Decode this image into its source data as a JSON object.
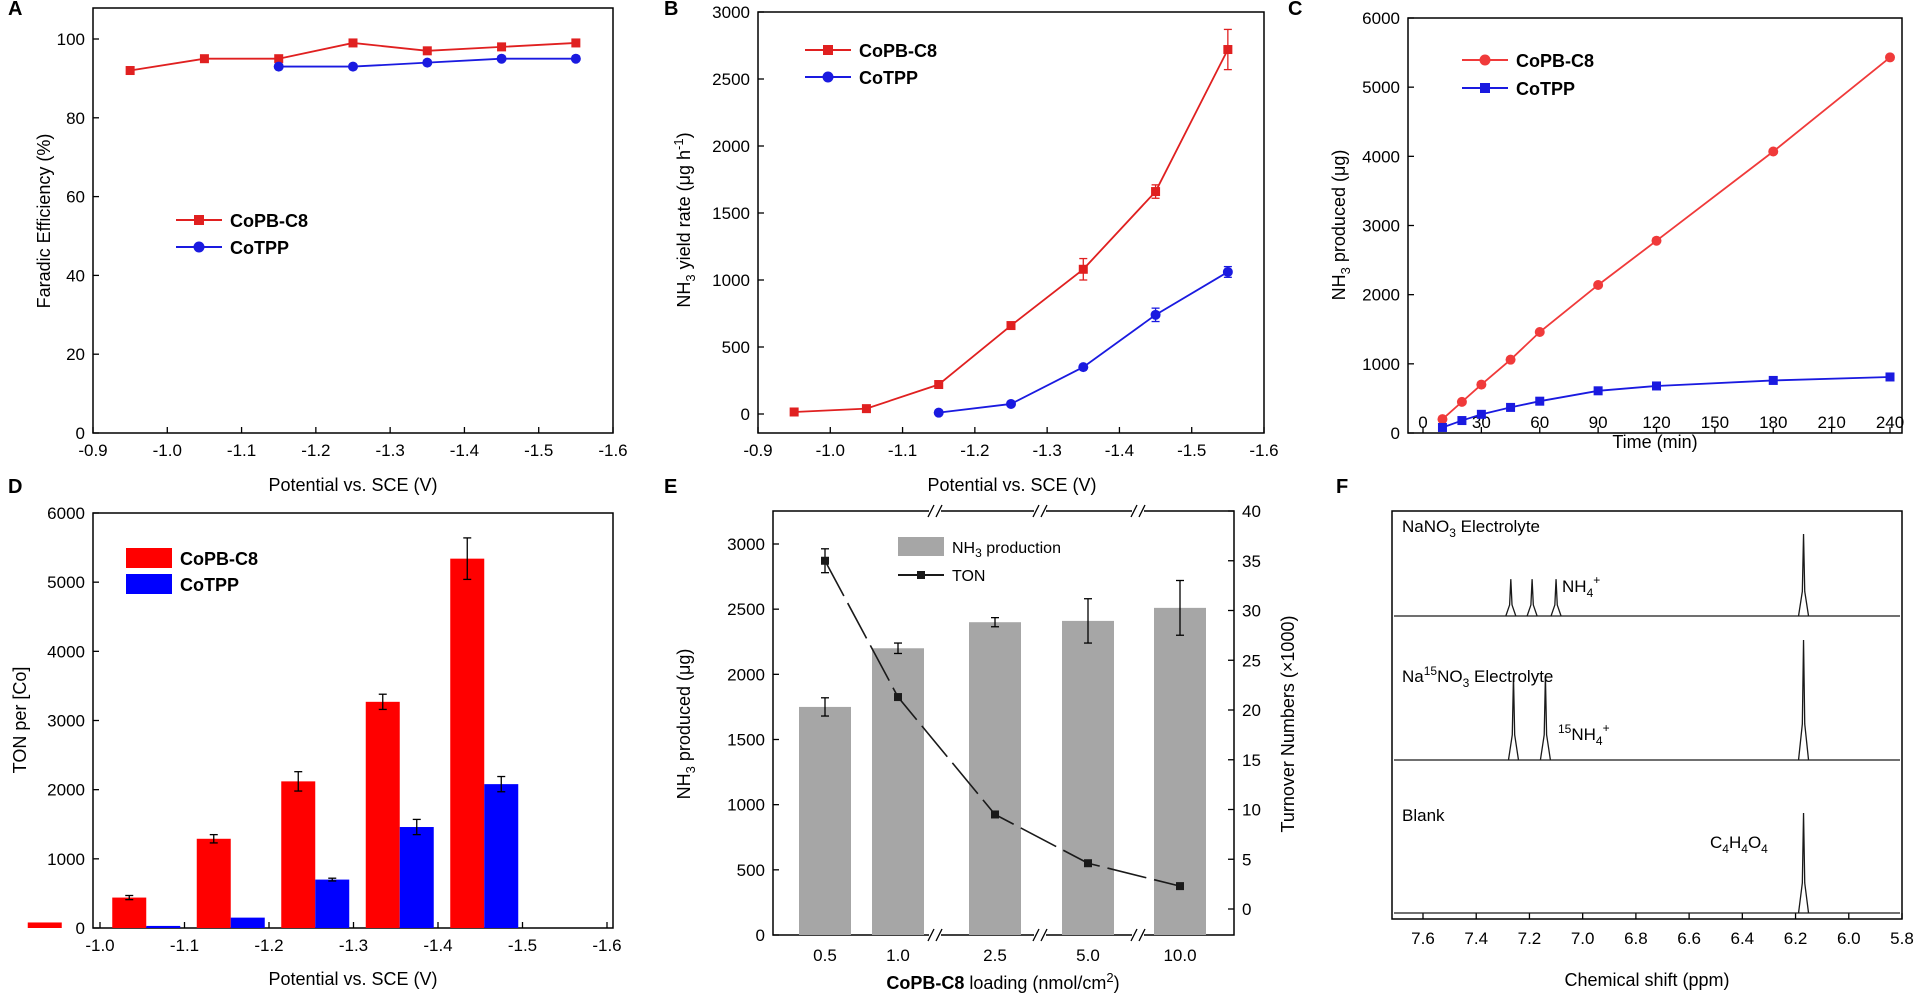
{
  "figure": {
    "panel_letters": [
      "A",
      "B",
      "C",
      "D",
      "E",
      "F"
    ]
  },
  "chart_data": [
    {
      "panel": "A",
      "type": "line",
      "xlabel": "Potential vs. SCE (V)",
      "ylabel": "Faradic Efficiency (%)",
      "xlim": [
        -0.9,
        -1.6
      ],
      "ylim": [
        0,
        105
      ],
      "xticks": [
        "-0.9",
        "-1.0",
        "-1.1",
        "-1.2",
        "-1.3",
        "-1.4",
        "-1.5",
        "-1.6"
      ],
      "yticks": [
        "0",
        "20",
        "40",
        "60",
        "80",
        "100"
      ],
      "legend": [
        "CoPB-C8",
        "CoTPP"
      ],
      "series": [
        {
          "name": "CoPB-C8",
          "color": "#e02020",
          "marker": "square",
          "x": [
            -0.95,
            -1.05,
            -1.15,
            -1.25,
            -1.35,
            -1.45,
            -1.55
          ],
          "y": [
            92,
            95,
            95,
            99,
            97,
            98,
            99
          ]
        },
        {
          "name": "CoTPP",
          "color": "#1a1ae0",
          "marker": "circle",
          "x": [
            -1.15,
            -1.25,
            -1.35,
            -1.45,
            -1.55
          ],
          "y": [
            93,
            93,
            94,
            95,
            95
          ]
        }
      ]
    },
    {
      "panel": "B",
      "type": "line",
      "xlabel": "Potential vs. SCE (V)",
      "ylabel_main": "NH",
      "ylabel_sub": "3",
      "ylabel_rest": " yield rate (μg h",
      "ylabel_sup": "-1",
      "ylabel_end": ")",
      "xlim": [
        -0.9,
        -1.6
      ],
      "ylim": [
        -80,
        3000
      ],
      "xticks": [
        "-0.9",
        "-1.0",
        "-1.1",
        "-1.2",
        "-1.3",
        "-1.4",
        "-1.5",
        "-1.6"
      ],
      "yticks": [
        "0",
        "500",
        "1000",
        "1500",
        "2000",
        "2500",
        "3000"
      ],
      "legend": [
        "CoPB-C8",
        "CoTPP"
      ],
      "series": [
        {
          "name": "CoPB-C8",
          "color": "#e02020",
          "marker": "square",
          "x": [
            -0.95,
            -1.05,
            -1.15,
            -1.25,
            -1.35,
            -1.45,
            -1.55
          ],
          "y": [
            15,
            40,
            220,
            660,
            1080,
            1660,
            2720
          ],
          "err": [
            0,
            0,
            0,
            0,
            80,
            50,
            150
          ]
        },
        {
          "name": "CoTPP",
          "color": "#1a1ae0",
          "marker": "circle",
          "x": [
            -1.15,
            -1.25,
            -1.35,
            -1.45,
            -1.55
          ],
          "y": [
            10,
            75,
            350,
            740,
            1060
          ],
          "err": [
            0,
            0,
            0,
            50,
            40
          ]
        }
      ]
    },
    {
      "panel": "C",
      "type": "line",
      "xlabel": "Time (min)",
      "ylabel_main": "NH",
      "ylabel_sub": "3",
      "ylabel_rest": " produced (μg)",
      "xlim": [
        0,
        250
      ],
      "ylim": [
        0,
        6000
      ],
      "xticks": [
        "0",
        "30",
        "60",
        "90",
        "120",
        "150",
        "180",
        "210",
        "240"
      ],
      "yticks": [
        "0",
        "1000",
        "2000",
        "3000",
        "4000",
        "5000",
        "6000"
      ],
      "legend": [
        "CoPB-C8",
        "CoTPP"
      ],
      "series": [
        {
          "name": "CoPB-C8",
          "color": "#f03a3a",
          "marker": "circle",
          "x": [
            10,
            20,
            30,
            45,
            60,
            90,
            120,
            180,
            240
          ],
          "y": [
            200,
            450,
            700,
            1060,
            1460,
            2140,
            2780,
            4070,
            5430
          ]
        },
        {
          "name": "CoTPP",
          "color": "#1a1ae0",
          "marker": "square",
          "x": [
            10,
            20,
            30,
            45,
            60,
            90,
            120,
            180,
            240
          ],
          "y": [
            80,
            180,
            270,
            370,
            460,
            610,
            680,
            760,
            810
          ]
        }
      ]
    },
    {
      "panel": "D",
      "type": "bar",
      "xlabel": "Potential vs. SCE (V)",
      "ylabel": "TON per [Co]",
      "xlim": [
        -1.0,
        -1.6
      ],
      "ylim": [
        0,
        6000
      ],
      "xticks": [
        "-1.0",
        "-1.1",
        "-1.2",
        "-1.3",
        "-1.4",
        "-1.5",
        "-1.6"
      ],
      "yticks": [
        "0",
        "1000",
        "2000",
        "3000",
        "4000",
        "5000",
        "6000"
      ],
      "legend": [
        "CoPB-C8",
        "CoTPP"
      ],
      "categories": [
        -0.95,
        -1.05,
        -1.15,
        -1.25,
        -1.35,
        -1.45,
        -1.55
      ],
      "series": [
        {
          "name": "CoPB-C8",
          "color": "#ff0000",
          "values": [
            80,
            440,
            1290,
            2120,
            3270,
            5340,
            null
          ],
          "err": [
            0,
            30,
            60,
            140,
            110,
            300,
            0
          ]
        },
        {
          "name": "CoTPP",
          "color": "#0000ff",
          "values": [
            null,
            30,
            150,
            700,
            1460,
            2080,
            null
          ],
          "err": [
            0,
            0,
            0,
            20,
            110,
            110,
            0
          ]
        }
      ]
    },
    {
      "panel": "E",
      "type": "bar",
      "xlabel_bold": "CoPB-C8",
      "xlabel_rest": " loading (nmol/cm",
      "xlabel_sup": "2",
      "xlabel_end": ")",
      "ylabel_main": "NH",
      "ylabel_sub": "3",
      "ylabel_rest": " produced (μg)",
      "y2label": "Turnover Numbers (×1000)",
      "ylim": [
        0,
        3250
      ],
      "y2lim": [
        -2,
        40
      ],
      "categories": [
        "0.5",
        "1.0",
        "2.5",
        "5.0",
        "10.0"
      ],
      "yticks": [
        "0",
        "500",
        "1000",
        "1500",
        "2000",
        "2500",
        "3000"
      ],
      "y2ticks": [
        "0",
        "5",
        "10",
        "15",
        "20",
        "25",
        "30",
        "35",
        "40"
      ],
      "legend_bar_main": "NH",
      "legend_bar_sub": "3",
      "legend_bar_rest": " production",
      "legend_line": "TON",
      "series": [
        {
          "name": "NH3 production",
          "color": "#a6a6a6",
          "values": [
            1750,
            2200,
            2400,
            2410,
            2510
          ],
          "err": [
            70,
            40,
            35,
            170,
            210
          ]
        },
        {
          "name": "TON",
          "color": "#1a1a1a",
          "axis": "right",
          "values": [
            35,
            21.3,
            9.5,
            4.6,
            2.3
          ],
          "err": [
            1.2,
            0,
            0,
            0,
            0
          ]
        }
      ]
    },
    {
      "panel": "F",
      "type": "line",
      "xlabel": "Chemical shift (ppm)",
      "xlim": [
        7.75,
        5.8
      ],
      "xticks": [
        "7.6",
        "7.4",
        "7.2",
        "7.0",
        "6.8",
        "6.6",
        "6.4",
        "6.2",
        "6.0",
        "5.8"
      ],
      "traces": [
        {
          "label_main": "NaNO",
          "label_sub": "3",
          "label_rest": " Electrolyte",
          "annotation_main": "NH",
          "annotation_sub": "4",
          "annotation_sup": "+",
          "peaks_ppm": [
            7.27,
            7.19,
            7.1,
            6.17
          ],
          "peak_heights": [
            0.45,
            0.45,
            0.45,
            1.0
          ]
        },
        {
          "label_main": "Na",
          "label_sup": "15",
          "label_rest": "NO",
          "label_sub": "3",
          "label_end": " Electrolyte",
          "annotation_pre": "15",
          "annotation_main": "NH",
          "annotation_sub": "4",
          "annotation_sup": "+",
          "peaks_ppm": [
            7.26,
            7.14,
            6.17
          ],
          "peak_heights": [
            0.7,
            0.7,
            1.0
          ]
        },
        {
          "label_main": "Blank",
          "annotation_main": "C",
          "annotation_sub1": "4",
          "annotation_mid": "H",
          "annotation_sub2": "4",
          "annotation_mid2": "O",
          "annotation_sub3": "4",
          "peaks_ppm": [
            6.17
          ],
          "peak_heights": [
            1.0
          ]
        }
      ]
    }
  ]
}
